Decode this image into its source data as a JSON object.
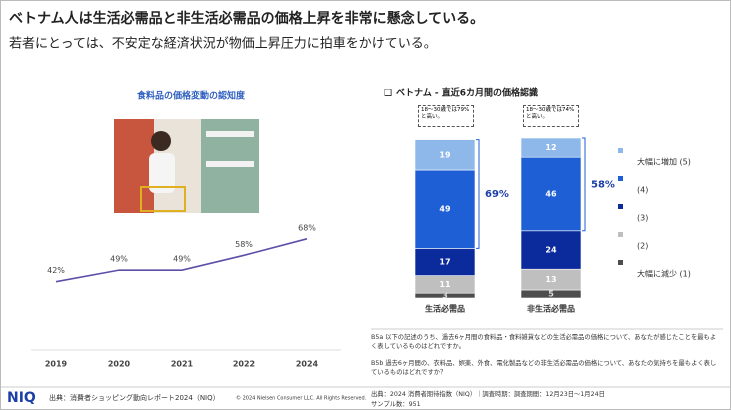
{
  "header": {
    "title": "ベトナム人は生活必需品と非生活必需品の価格上昇を非常に懸念している。",
    "subtitle": "若者にとっては、不安定な経済状況が物価上昇圧力に拍車をかけている。"
  },
  "chart_data": [
    {
      "type": "line",
      "title": "食料品の価格変動の認知度",
      "categories": [
        "2019",
        "2020",
        "2021",
        "2022",
        "2024"
      ],
      "values": [
        42,
        49,
        49,
        58,
        68
      ],
      "value_labels": [
        "42%",
        "49%",
        "49%",
        "58%",
        "68%"
      ],
      "color": "#5b4fa8",
      "ylim": [
        0,
        100
      ]
    },
    {
      "type": "stacked_bar",
      "title": "ベトナム - 直近6カ月間の価格認識",
      "categories": [
        "生活必需品",
        "非生活必需品"
      ],
      "series": [
        {
          "name": "大幅に減少 (1)",
          "color": "#4d4d4d",
          "values": [
            3,
            5
          ]
        },
        {
          "name": "(2)",
          "color": "#bfbfbf",
          "values": [
            11,
            13
          ]
        },
        {
          "name": "(3)",
          "color": "#0b2a9c",
          "values": [
            17,
            24
          ]
        },
        {
          "name": "(4)",
          "color": "#1f5fd6",
          "values": [
            49,
            46
          ]
        },
        {
          "name": "大幅に増加 (5)",
          "color": "#8fb8ea",
          "values": [
            19,
            12
          ]
        }
      ],
      "ylim": [
        0,
        100
      ],
      "annotations": [
        "69%",
        "58%"
      ],
      "callouts": [
        "18～30歳では79%と高い。",
        "18～30歳では74%と高い。"
      ]
    }
  ],
  "notes": [
    "B5a 以下の記述のうち、過去6ヶ月間の食料品・食料雑貨などの生活必需品の価格について、あなたが感じたことを最もよく表しているものはどれですか。",
    "B5b 過去6ヶ月間の、衣料品、娯楽、外食、電化製品などの非生活必需品の価格について、あなたの気持ちを最もよく表しているものはどれですか？"
  ],
  "footer": {
    "logo": "NIQ",
    "source": "出典：消費者ショッピング動向レポート2024（NIQ）",
    "copyright": "© 2024 Nielsen Consumer LLC. All Rights Reserved.",
    "survey": "出典：2024 消費者期待指数（NIQ）｜調査時期：調査期間：12月23日～1月24日",
    "sample": "サンプル数：951"
  }
}
